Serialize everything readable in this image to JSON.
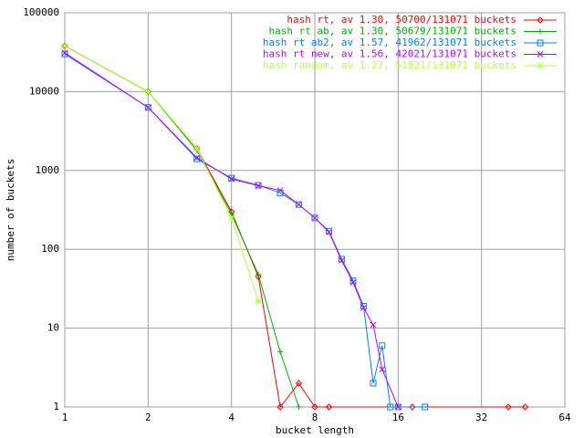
{
  "chart_data": {
    "type": "line",
    "xlabel": "bucket length",
    "ylabel": "number of buckets",
    "xscale": "log",
    "yscale": "log",
    "grid": true,
    "legend": "top-right",
    "xlim": [
      1,
      64
    ],
    "ylim": [
      1,
      100000
    ],
    "xticks": [
      1,
      2,
      4,
      8,
      16,
      32,
      64
    ],
    "yticks": [
      1,
      10,
      100,
      1000,
      10000,
      100000
    ],
    "series": [
      {
        "name": "hash rt, av 1.30, 50700/131071 buckets",
        "color": "#ff0000",
        "marker": "diamond",
        "x": [
          1,
          2,
          3,
          4,
          5,
          6,
          7,
          8,
          9,
          18,
          40,
          46
        ],
        "values": [
          38000,
          10000,
          1900,
          300,
          45,
          1,
          2,
          1,
          1,
          1,
          1,
          1
        ]
      },
      {
        "name": "hash rt ab, av 1.30, 50679/131071 buckets",
        "color": "#00b000",
        "marker": "plus",
        "x": [
          1,
          2,
          3,
          4,
          5,
          6,
          7
        ],
        "values": [
          38000,
          10000,
          1800,
          280,
          48,
          5,
          1
        ]
      },
      {
        "name": "hash rt ab2, av 1.57, 41962/131071 buckets",
        "color": "#0080ff",
        "marker": "square",
        "x": [
          1,
          2,
          3,
          4,
          5,
          6,
          7,
          8,
          9,
          10,
          11,
          12,
          13,
          14,
          15,
          16,
          20
        ],
        "values": [
          30000,
          6300,
          1400,
          800,
          650,
          520,
          370,
          250,
          170,
          75,
          40,
          19,
          2,
          6,
          1,
          1,
          1
        ]
      },
      {
        "name": "hash rt new, av 1.56, 42021/131071 buckets",
        "color": "#c000ff",
        "marker": "cross",
        "x": [
          1,
          2,
          3,
          4,
          5,
          6,
          7,
          8,
          9,
          10,
          11,
          12,
          13,
          14,
          16
        ],
        "values": [
          31000,
          6300,
          1450,
          780,
          640,
          560,
          370,
          250,
          165,
          72,
          38,
          18,
          11,
          3,
          1
        ]
      },
      {
        "name": "hash random, av 1.27, 51821/131071 buckets",
        "color": "#b8ff40",
        "marker": "star",
        "x": [
          1,
          2,
          3,
          4,
          5
        ],
        "values": [
          38000,
          10000,
          1900,
          250,
          22
        ]
      }
    ]
  }
}
